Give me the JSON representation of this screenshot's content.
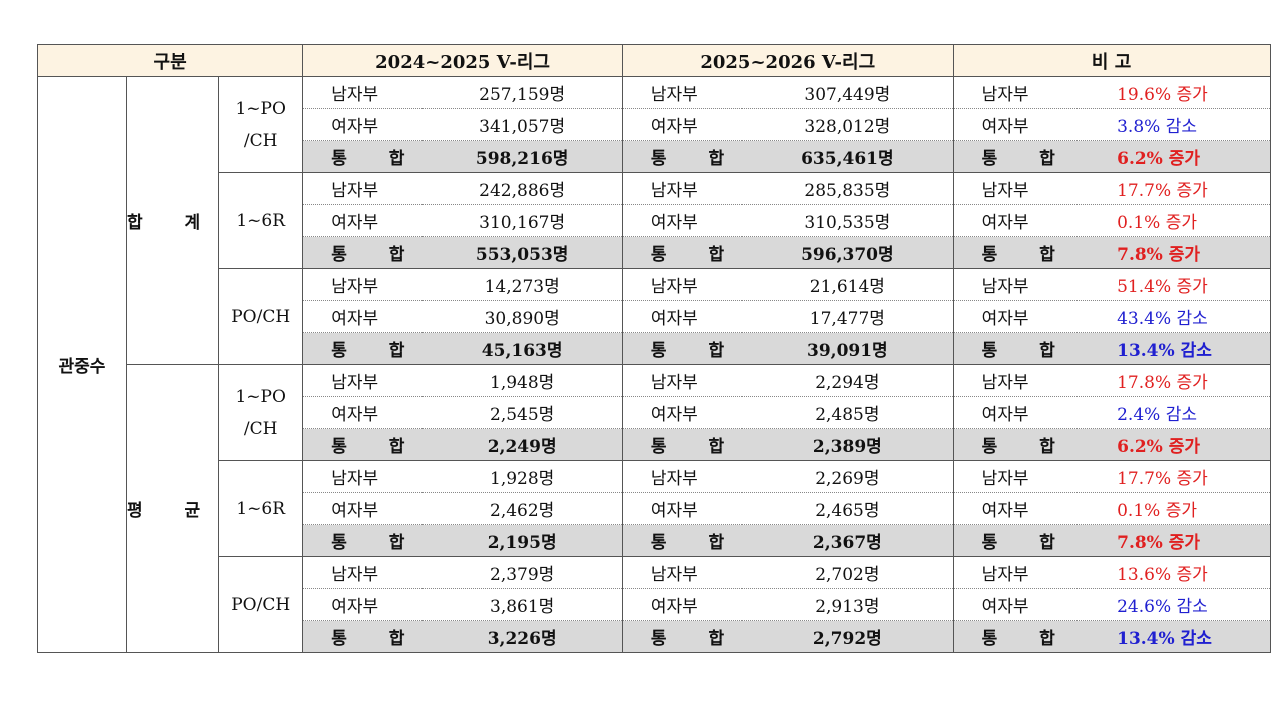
{
  "header": {
    "category": "구분",
    "season_prev": "2024~2025 V-리그",
    "season_curr": "2025~2026 V-리그",
    "remarks": "비 고"
  },
  "row_label": "관중수",
  "groups": [
    {
      "label": "합 계",
      "segments": [
        {
          "label_line1": "1~PO",
          "label_line2": "/CH",
          "rows": [
            {
              "type": "남자부",
              "prev": "257,159명",
              "curr": "307,449명",
              "change": "19.6%  증가",
              "dir": "inc"
            },
            {
              "type": "여자부",
              "prev": "341,057명",
              "curr": "328,012명",
              "change": "3.8%  감소",
              "dir": "dec"
            },
            {
              "type": "통 합",
              "prev": "598,216명",
              "curr": "635,461명",
              "change": "6.2%  증가",
              "dir": "inc"
            }
          ]
        },
        {
          "label_line1": "1~6R",
          "label_line2": "",
          "rows": [
            {
              "type": "남자부",
              "prev": "242,886명",
              "curr": "285,835명",
              "change": "17.7%  증가",
              "dir": "inc"
            },
            {
              "type": "여자부",
              "prev": "310,167명",
              "curr": "310,535명",
              "change": "0.1%  증가",
              "dir": "inc"
            },
            {
              "type": "통 합",
              "prev": "553,053명",
              "curr": "596,370명",
              "change": "7.8%  증가",
              "dir": "inc"
            }
          ]
        },
        {
          "label_line1": "PO/CH",
          "label_line2": "",
          "rows": [
            {
              "type": "남자부",
              "prev": "14,273명",
              "curr": "21,614명",
              "change": "51.4%  증가",
              "dir": "inc"
            },
            {
              "type": "여자부",
              "prev": "30,890명",
              "curr": "17,477명",
              "change": "43.4%  감소",
              "dir": "dec"
            },
            {
              "type": "통 합",
              "prev": "45,163명",
              "curr": "39,091명",
              "change": "13.4%  감소",
              "dir": "dec"
            }
          ]
        }
      ]
    },
    {
      "label": "평 균",
      "segments": [
        {
          "label_line1": "1~PO",
          "label_line2": "/CH",
          "rows": [
            {
              "type": "남자부",
              "prev": "1,948명",
              "curr": "2,294명",
              "change": "17.8%  증가",
              "dir": "inc"
            },
            {
              "type": "여자부",
              "prev": "2,545명",
              "curr": "2,485명",
              "change": "2.4%  감소",
              "dir": "dec"
            },
            {
              "type": "통 합",
              "prev": "2,249명",
              "curr": "2,389명",
              "change": "6.2%  증가",
              "dir": "inc"
            }
          ]
        },
        {
          "label_line1": "1~6R",
          "label_line2": "",
          "rows": [
            {
              "type": "남자부",
              "prev": "1,928명",
              "curr": "2,269명",
              "change": "17.7%  증가",
              "dir": "inc"
            },
            {
              "type": "여자부",
              "prev": "2,462명",
              "curr": "2,465명",
              "change": "0.1%  증가",
              "dir": "inc"
            },
            {
              "type": "통 합",
              "prev": "2,195명",
              "curr": "2,367명",
              "change": "7.8%  증가",
              "dir": "inc"
            }
          ]
        },
        {
          "label_line1": "PO/CH",
          "label_line2": "",
          "rows": [
            {
              "type": "남자부",
              "prev": "2,379명",
              "curr": "2,702명",
              "change": "13.6%  증가",
              "dir": "inc"
            },
            {
              "type": "여자부",
              "prev": "3,861명",
              "curr": "2,913명",
              "change": "24.6%  감소",
              "dir": "dec"
            },
            {
              "type": "통 합",
              "prev": "3,226명",
              "curr": "2,792명",
              "change": "13.4%  감소",
              "dir": "dec"
            }
          ]
        }
      ]
    }
  ],
  "colors": {
    "increase": "#e02020",
    "decrease": "#2020d0",
    "header_bg": "#fdf3e2",
    "total_bg": "#d9d9d9"
  }
}
